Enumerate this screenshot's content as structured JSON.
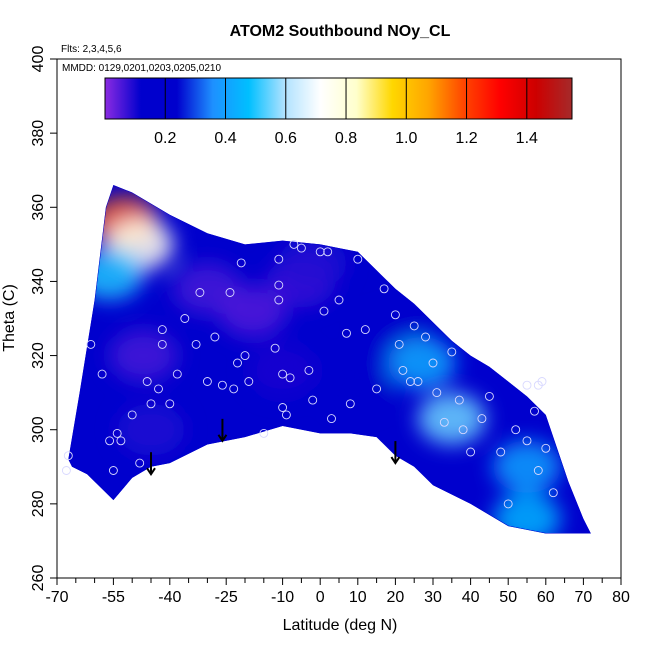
{
  "chart_data": {
    "type": "heatmap",
    "title": "ATOM2 Southbound NOy_CL",
    "xlabel": "Latitude (deg N)",
    "ylabel": "Theta (C)",
    "xlim": [
      -70,
      80
    ],
    "ylim": [
      260,
      400
    ],
    "x_ticks": [
      -70,
      -55,
      -40,
      -25,
      -10,
      0,
      10,
      20,
      30,
      40,
      50,
      60,
      70,
      80
    ],
    "x_minor_ticks": [
      -65,
      -60,
      -50,
      -45,
      -35,
      -30,
      -20,
      -15,
      -5,
      5,
      15,
      25,
      35,
      45,
      55,
      65,
      75
    ],
    "y_ticks": [
      260,
      280,
      300,
      320,
      340,
      360,
      380,
      400
    ],
    "annotations": {
      "flights": "Flts: 2,3,4,5,6",
      "dates": "MMDD: 0129,0201,0203,0205,0210"
    },
    "colorbar": {
      "range": [
        0,
        1.55
      ],
      "ticks": [
        0.2,
        0.4,
        0.6,
        0.8,
        1.0,
        1.2,
        1.4
      ],
      "tick_labels": [
        "0.2",
        "0.4",
        "0.6",
        "0.8",
        "1.0",
        "1.2",
        "1.4"
      ],
      "colors": [
        "#8B2BE2",
        "#0000CD",
        "#0000CD",
        "#1E90FF",
        "#00BFFF",
        "#B0E2FF",
        "#FFFFFF",
        "#FFFFCC",
        "#FFD700",
        "#FFA500",
        "#FF4500",
        "#FF0000",
        "#CD0000",
        "#A52A2A"
      ]
    },
    "domain_outline": {
      "top": [
        [
          -57,
          360
        ],
        [
          -55,
          366
        ],
        [
          -50,
          364
        ],
        [
          -40,
          358
        ],
        [
          -30,
          353
        ],
        [
          -20,
          350
        ],
        [
          -10,
          351
        ],
        [
          0,
          350
        ],
        [
          5,
          349
        ],
        [
          10,
          348
        ],
        [
          15,
          343
        ],
        [
          20,
          338
        ],
        [
          25,
          334
        ],
        [
          30,
          329
        ],
        [
          35,
          324
        ],
        [
          40,
          320
        ],
        [
          45,
          317
        ],
        [
          50,
          313
        ],
        [
          55,
          309
        ],
        [
          60,
          304
        ],
        [
          63,
          295
        ],
        [
          66,
          286
        ],
        [
          70,
          276
        ],
        [
          72,
          272
        ]
      ],
      "bottom": [
        [
          72,
          272
        ],
        [
          60,
          272
        ],
        [
          50,
          274
        ],
        [
          40,
          280
        ],
        [
          30,
          285
        ],
        [
          25,
          290
        ],
        [
          20,
          293
        ],
        [
          15,
          298
        ],
        [
          8,
          299
        ],
        [
          0,
          299
        ],
        [
          -10,
          301
        ],
        [
          -20,
          298
        ],
        [
          -30,
          296
        ],
        [
          -40,
          291
        ],
        [
          -45,
          290
        ],
        [
          -50,
          287
        ],
        [
          -55,
          281
        ],
        [
          -62,
          288
        ],
        [
          -66,
          290
        ],
        [
          -67,
          292
        ],
        [
          -64,
          310
        ],
        [
          -60,
          335
        ],
        [
          -57,
          360
        ]
      ]
    },
    "field_blobs": [
      {
        "lat": -47,
        "theta": 320,
        "value": 0.06
      },
      {
        "lat": -30,
        "theta": 338,
        "value": 0.06
      },
      {
        "lat": -18,
        "theta": 332,
        "value": 0.05
      },
      {
        "lat": -5,
        "theta": 340,
        "value": 0.07
      },
      {
        "lat": -45,
        "theta": 300,
        "value": 0.09
      },
      {
        "lat": -10,
        "theta": 316,
        "value": 0.1
      },
      {
        "lat": 10,
        "theta": 312,
        "value": 0.12
      },
      {
        "lat": 20,
        "theta": 325,
        "value": 0.18
      },
      {
        "lat": 35,
        "theta": 303,
        "value": 0.55
      },
      {
        "lat": 55,
        "theta": 290,
        "value": 0.4
      },
      {
        "lat": 55,
        "theta": 276,
        "value": 0.45
      },
      {
        "lat": -52,
        "theta": 356,
        "value": 1.15
      },
      {
        "lat": -48,
        "theta": 350,
        "value": 0.75
      },
      {
        "lat": -56,
        "theta": 342,
        "value": 0.5
      },
      {
        "lat": 27,
        "theta": 318,
        "value": 0.42
      },
      {
        "lat": -2,
        "theta": 345,
        "value": 0.09
      }
    ],
    "observations": [
      [
        -67.5,
        289
      ],
      [
        -67,
        293
      ],
      [
        -61,
        323
      ],
      [
        -58,
        315
      ],
      [
        -56,
        297
      ],
      [
        -55,
        289
      ],
      [
        -54,
        299
      ],
      [
        -53,
        297
      ],
      [
        -50,
        304
      ],
      [
        -48,
        291
      ],
      [
        -46,
        313
      ],
      [
        -45,
        307
      ],
      [
        -43,
        311
      ],
      [
        -42,
        323
      ],
      [
        -42,
        327
      ],
      [
        -40,
        307
      ],
      [
        -38,
        315
      ],
      [
        -36,
        330
      ],
      [
        -33,
        323
      ],
      [
        -32,
        337
      ],
      [
        -30,
        313
      ],
      [
        -28,
        325
      ],
      [
        -26,
        312
      ],
      [
        -24,
        337
      ],
      [
        -23,
        311
      ],
      [
        -22,
        318
      ],
      [
        -21,
        345
      ],
      [
        -20,
        320
      ],
      [
        -19,
        313
      ],
      [
        -15,
        299
      ],
      [
        -12,
        322
      ],
      [
        -11,
        339
      ],
      [
        -11,
        335
      ],
      [
        -11,
        346
      ],
      [
        -10,
        315
      ],
      [
        -10,
        306
      ],
      [
        -9,
        304
      ],
      [
        -8,
        314
      ],
      [
        -7,
        350
      ],
      [
        -5,
        349
      ],
      [
        -3,
        316
      ],
      [
        -2,
        308
      ],
      [
        0,
        348
      ],
      [
        1,
        332
      ],
      [
        2,
        348
      ],
      [
        3,
        303
      ],
      [
        5,
        335
      ],
      [
        7,
        326
      ],
      [
        8,
        307
      ],
      [
        10,
        346
      ],
      [
        12,
        327
      ],
      [
        15,
        311
      ],
      [
        17,
        338
      ],
      [
        20,
        331
      ],
      [
        21,
        323
      ],
      [
        22,
        316
      ],
      [
        24,
        313
      ],
      [
        25,
        328
      ],
      [
        26,
        313
      ],
      [
        28,
        325
      ],
      [
        30,
        318
      ],
      [
        31,
        310
      ],
      [
        33,
        302
      ],
      [
        35,
        321
      ],
      [
        37,
        308
      ],
      [
        38,
        300
      ],
      [
        40,
        294
      ],
      [
        43,
        303
      ],
      [
        45,
        309
      ],
      [
        48,
        294
      ],
      [
        50,
        280
      ],
      [
        52,
        300
      ],
      [
        55,
        297
      ],
      [
        55,
        312
      ],
      [
        57,
        305
      ],
      [
        58,
        289
      ],
      [
        58,
        312
      ],
      [
        59,
        313
      ],
      [
        60,
        295
      ],
      [
        62,
        283
      ]
    ],
    "arrows": [
      {
        "lat": -45,
        "theta": 288
      },
      {
        "lat": -26,
        "theta": 297
      },
      {
        "lat": 20,
        "theta": 291
      }
    ]
  }
}
